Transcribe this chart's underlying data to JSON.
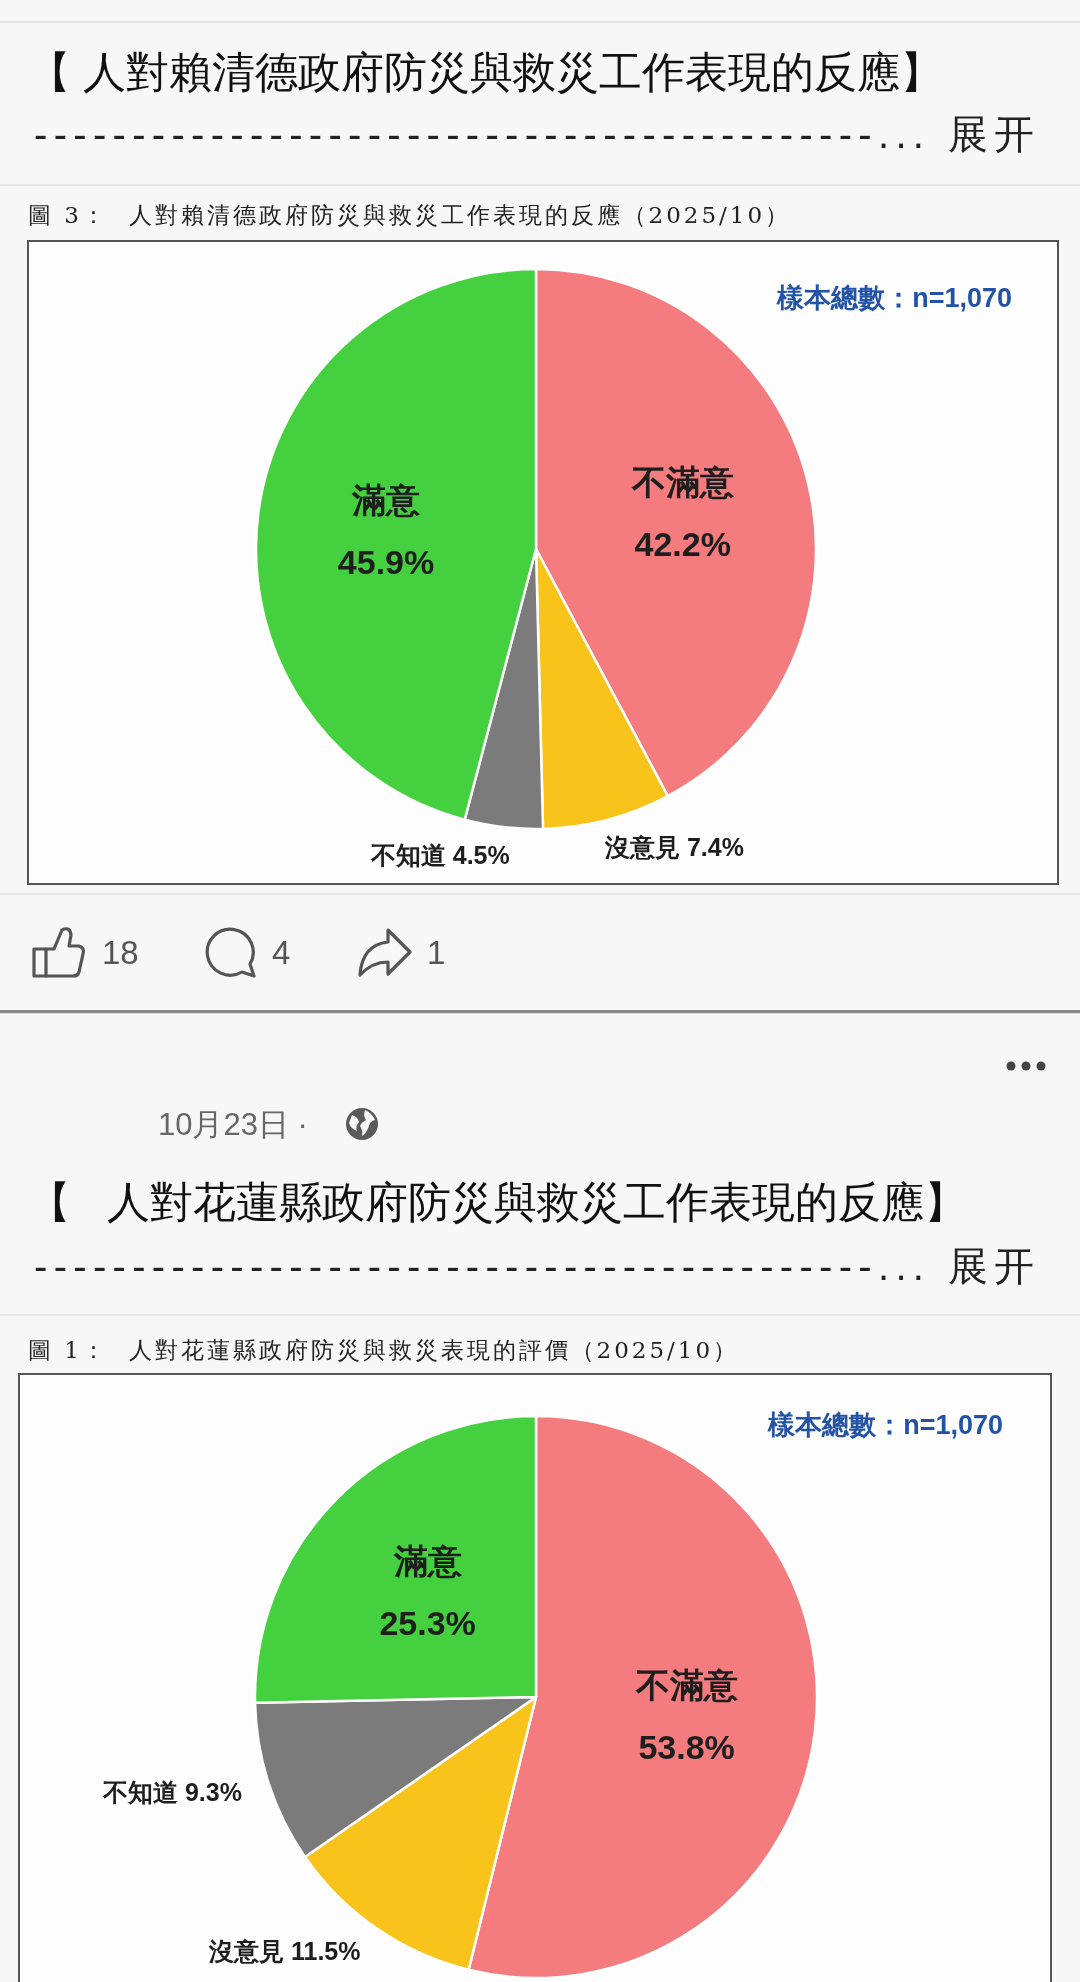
{
  "chart_data": [
    {
      "type": "pie",
      "title": "【 人對賴清德政府防災與救災工作表現的反應】",
      "subtitle": "圖 3：  人對賴清德政府防災與救災工作表現的反應（2025/10）",
      "categories": [
        "不滿意",
        "沒意見",
        "不知道",
        "滿意"
      ],
      "values": [
        42.2,
        7.4,
        4.5,
        45.9
      ],
      "value_labels": [
        "42.2%",
        "7.4%",
        "4.5%",
        "45.9%"
      ],
      "colors": [
        "#f47b7e",
        "#f8c41c",
        "#7b7b7b",
        "#45d03f"
      ],
      "annotations": [
        "-------------------------------------------... 展开",
        "樣本總數：n=1,070",
        "18",
        "4",
        "1"
      ]
    },
    {
      "type": "pie",
      "title": "【   人對花蓮縣政府防災與救災工作表現的反應】",
      "subtitle": "圖 1：  人對花蓮縣政府防災與救災表現的評價（2025/10）",
      "categories": [
        "不滿意",
        "沒意見",
        "不知道",
        "滿意"
      ],
      "values": [
        53.8,
        11.5,
        9.3,
        25.3
      ],
      "value_labels": [
        "53.8%",
        "11.5%",
        "9.3%",
        "25.3%"
      ],
      "colors": [
        "#f47b7e",
        "#f8c41c",
        "#7b7b7b",
        "#45d03f"
      ],
      "annotations": [
        "-------------------------------------------... 展开",
        "樣本總數：n=1,070",
        "10月23日 ·"
      ]
    }
  ]
}
